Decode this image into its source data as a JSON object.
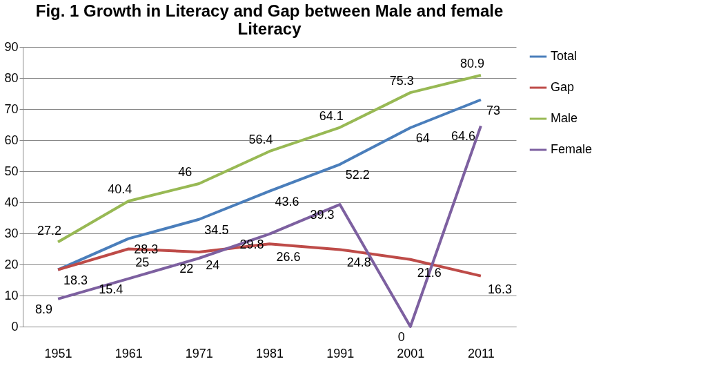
{
  "chart_data": {
    "type": "line",
    "title": "Fig. 1 Growth in Literacy and Gap between Male and female Literacy",
    "categories": [
      "1951",
      "1961",
      "1971",
      "1981",
      "1991",
      "2001",
      "2011"
    ],
    "series": [
      {
        "name": "Total",
        "color": "#4a7ebb",
        "values": [
          18.3,
          28.3,
          34.5,
          43.6,
          52.2,
          64,
          73
        ]
      },
      {
        "name": "Gap",
        "color": "#be4b48",
        "values": [
          18.3,
          25,
          24,
          26.6,
          24.8,
          21.6,
          16.3
        ],
        "value_labels": [
          null,
          "25",
          "24",
          "26.6",
          "24.8",
          "21.6",
          "16.3"
        ]
      },
      {
        "name": "Male",
        "color": "#98b954",
        "values": [
          27.2,
          40.4,
          46,
          56.4,
          64.1,
          75.3,
          80.9
        ]
      },
      {
        "name": "Female",
        "color": "#7d60a0",
        "values": [
          8.9,
          15.4,
          22,
          29.8,
          39.3,
          0,
          64.6
        ]
      }
    ],
    "ylim": [
      0,
      90
    ],
    "yticks": [
      0,
      10,
      20,
      30,
      40,
      50,
      60,
      70,
      80,
      90
    ],
    "grid": "y",
    "legend": "right",
    "data_labels": true,
    "marker": "none",
    "line_style": "solid"
  }
}
